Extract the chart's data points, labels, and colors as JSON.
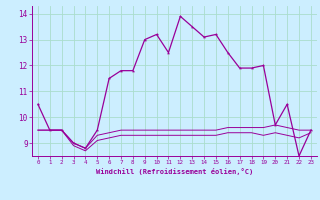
{
  "xlabel": "Windchill (Refroidissement éolien,°C)",
  "bg_color": "#cceeff",
  "grid_color": "#aaddcc",
  "line_color": "#990099",
  "hours": [
    0,
    1,
    2,
    3,
    4,
    5,
    6,
    7,
    8,
    9,
    10,
    11,
    12,
    13,
    14,
    15,
    16,
    17,
    18,
    19,
    20,
    21,
    22,
    23
  ],
  "temp": [
    10.5,
    9.5,
    9.5,
    9.0,
    8.8,
    9.5,
    11.5,
    11.8,
    11.8,
    13.0,
    13.2,
    12.5,
    13.9,
    13.5,
    13.1,
    13.2,
    12.5,
    11.9,
    11.9,
    12.0,
    9.7,
    10.5,
    8.5,
    9.5
  ],
  "wc1": [
    9.5,
    9.5,
    9.5,
    9.0,
    8.8,
    9.3,
    9.4,
    9.5,
    9.5,
    9.5,
    9.5,
    9.5,
    9.5,
    9.5,
    9.5,
    9.5,
    9.6,
    9.6,
    9.6,
    9.6,
    9.7,
    9.6,
    9.5,
    9.5
  ],
  "wc2": [
    9.5,
    9.5,
    9.5,
    8.9,
    8.7,
    9.1,
    9.2,
    9.3,
    9.3,
    9.3,
    9.3,
    9.3,
    9.3,
    9.3,
    9.3,
    9.3,
    9.4,
    9.4,
    9.4,
    9.3,
    9.4,
    9.3,
    9.2,
    9.4
  ],
  "ylim": [
    8.5,
    14.3
  ],
  "yticks": [
    9,
    10,
    11,
    12,
    13,
    14
  ],
  "xlim": [
    -0.5,
    23.5
  ]
}
